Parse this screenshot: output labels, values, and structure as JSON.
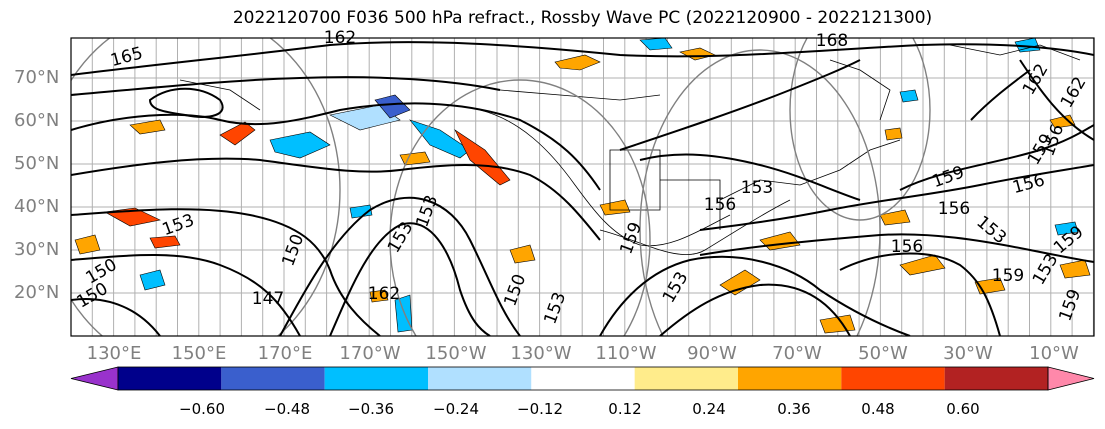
{
  "title": "2022120700 F036 500 hPa refract., Rossby Wave PC (2022120900 - 2022121300)",
  "lat_labels": [
    "70°N",
    "60°N",
    "50°N",
    "40°N",
    "30°N",
    "20°N"
  ],
  "lon_labels": [
    "130°E",
    "150°E",
    "170°E",
    "170°W",
    "150°W",
    "130°W",
    "110°W",
    "90°W",
    "70°W",
    "50°W",
    "30°W",
    "10°W"
  ],
  "colorbar": {
    "colors": [
      "#9932cc",
      "#00008b",
      "#3a5fcd",
      "#00bfff",
      "#b0e0ff",
      "#ffffff",
      "#ffec8b",
      "#ffa500",
      "#ff4500",
      "#b22222",
      "#ff88aa"
    ],
    "ticks": [
      "−0.60",
      "−0.48",
      "−0.36",
      "−0.24",
      "−0.12",
      "0.12",
      "0.24",
      "0.36",
      "0.48",
      "0.60"
    ]
  },
  "contour_labels": [
    "165",
    "162",
    "168",
    "162",
    "162",
    "159",
    "159",
    "156",
    "156",
    "153",
    "153",
    "156",
    "159",
    "156",
    "159",
    "153",
    "150",
    "147",
    "150",
    "162",
    "153",
    "153",
    "150",
    "153",
    "159",
    "153",
    "153",
    "150",
    "159",
    "156"
  ]
}
